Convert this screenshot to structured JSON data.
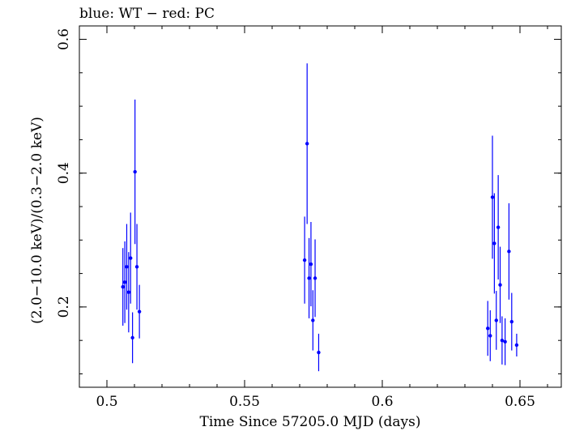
{
  "chart_data": {
    "type": "scatter",
    "title": "blue: WT − red: PC",
    "xlabel": "Time Since 57205.0 MJD (days)",
    "ylabel": "(2.0−10.0 keV)/(0.3−2.0 keV)",
    "xlim": [
      0.49,
      0.665
    ],
    "ylim": [
      0.08,
      0.62
    ],
    "x_ticks": [
      0.5,
      0.55,
      0.6,
      0.65
    ],
    "x_tick_labels": [
      "0.5",
      "0.55",
      "0.6",
      "0.65"
    ],
    "y_ticks": [
      0.2,
      0.4,
      0.6
    ],
    "y_tick_labels": [
      "0.2",
      "0.4",
      "0.6"
    ],
    "grid": false,
    "series": [
      {
        "name": "WT",
        "color": "#0000ff",
        "points": [
          {
            "x": 0.5058,
            "y": 0.23,
            "yerr": 0.058
          },
          {
            "x": 0.5065,
            "y": 0.237,
            "yerr": 0.061
          },
          {
            "x": 0.5072,
            "y": 0.26,
            "yerr": 0.064
          },
          {
            "x": 0.5079,
            "y": 0.222,
            "yerr": 0.06
          },
          {
            "x": 0.5086,
            "y": 0.273,
            "yerr": 0.068
          },
          {
            "x": 0.5093,
            "y": 0.154,
            "yerr": 0.038
          },
          {
            "x": 0.5102,
            "y": 0.402,
            "yerr": 0.108
          },
          {
            "x": 0.5109,
            "y": 0.26,
            "yerr": 0.064
          },
          {
            "x": 0.5118,
            "y": 0.193,
            "yerr": 0.04
          },
          {
            "x": 0.5718,
            "y": 0.27,
            "yerr": 0.065
          },
          {
            "x": 0.5727,
            "y": 0.444,
            "yerr": 0.12
          },
          {
            "x": 0.5734,
            "y": 0.243,
            "yerr": 0.06
          },
          {
            "x": 0.5741,
            "y": 0.264,
            "yerr": 0.063
          },
          {
            "x": 0.5748,
            "y": 0.18,
            "yerr": 0.045
          },
          {
            "x": 0.5756,
            "y": 0.243,
            "yerr": 0.058
          },
          {
            "x": 0.5769,
            "y": 0.132,
            "yerr": 0.028
          },
          {
            "x": 0.6383,
            "y": 0.168,
            "yerr": 0.041
          },
          {
            "x": 0.6392,
            "y": 0.157,
            "yerr": 0.038
          },
          {
            "x": 0.64,
            "y": 0.364,
            "yerr": 0.092
          },
          {
            "x": 0.6407,
            "y": 0.295,
            "yerr": 0.075
          },
          {
            "x": 0.6414,
            "y": 0.18,
            "yerr": 0.044
          },
          {
            "x": 0.6421,
            "y": 0.319,
            "yerr": 0.078
          },
          {
            "x": 0.6428,
            "y": 0.233,
            "yerr": 0.057
          },
          {
            "x": 0.6435,
            "y": 0.15,
            "yerr": 0.036
          },
          {
            "x": 0.6446,
            "y": 0.148,
            "yerr": 0.035
          },
          {
            "x": 0.646,
            "y": 0.283,
            "yerr": 0.072
          },
          {
            "x": 0.647,
            "y": 0.178,
            "yerr": 0.043
          },
          {
            "x": 0.6488,
            "y": 0.143,
            "yerr": 0.017
          }
        ]
      }
    ]
  }
}
